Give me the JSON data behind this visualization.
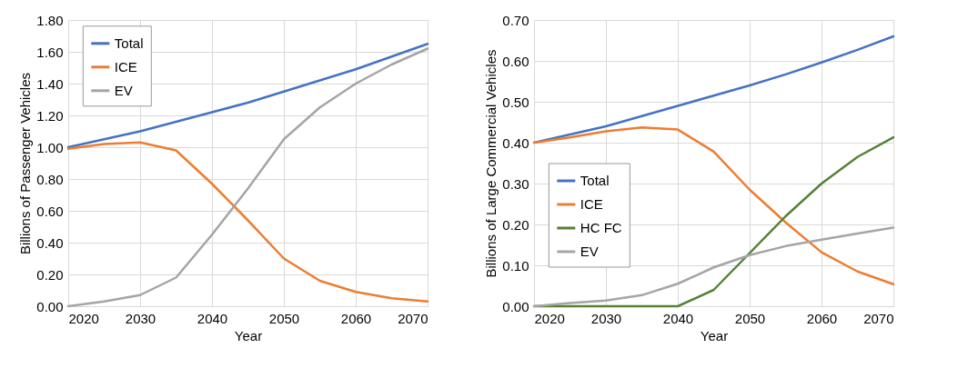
{
  "chart_data": [
    {
      "type": "line",
      "xlabel": "Year",
      "ylabel": "Billions of Passenger Vehicles",
      "x": [
        2020,
        2025,
        2030,
        2035,
        2040,
        2045,
        2050,
        2055,
        2060,
        2065,
        2070
      ],
      "series": [
        {
          "name": "Total",
          "color": "#4472c4",
          "values": [
            1.0,
            1.05,
            1.1,
            1.16,
            1.22,
            1.28,
            1.35,
            1.42,
            1.49,
            1.57,
            1.65
          ]
        },
        {
          "name": "ICE",
          "color": "#ed7d31",
          "values": [
            0.99,
            1.02,
            1.03,
            0.98,
            0.77,
            0.54,
            0.3,
            0.16,
            0.09,
            0.05,
            0.03
          ]
        },
        {
          "name": "EV",
          "color": "#a5a5a5",
          "values": [
            0.0,
            0.03,
            0.07,
            0.18,
            0.45,
            0.74,
            1.05,
            1.25,
            1.4,
            1.52,
            1.62
          ]
        }
      ],
      "xlim": [
        2020,
        2070
      ],
      "xticks": [
        2020,
        2030,
        2040,
        2050,
        2060,
        2070
      ],
      "ylim": [
        0,
        1.8
      ],
      "yticks": [
        {
          "value": 0,
          "label": "0.00"
        },
        {
          "value": 0.2,
          "label": "0.20"
        },
        {
          "value": 0.4,
          "label": "0.40"
        },
        {
          "value": 0.6,
          "label": "0.60"
        },
        {
          "value": 0.8,
          "label": "0.80"
        },
        {
          "value": 1.0,
          "label": "1.00"
        },
        {
          "value": 1.2,
          "label": "1.20"
        },
        {
          "value": 1.4,
          "label": "1.40"
        },
        {
          "value": 1.6,
          "label": "1.60"
        },
        {
          "value": 1.8,
          "label": "1.80"
        }
      ],
      "grid": true,
      "legend": "top left",
      "marker": "none",
      "line_style": "solid"
    },
    {
      "type": "line",
      "xlabel": "Year",
      "ylabel": "Billions of Large Commercial Vehicles",
      "x": [
        2020,
        2025,
        2030,
        2035,
        2040,
        2045,
        2050,
        2055,
        2060,
        2065,
        2070
      ],
      "series": [
        {
          "name": "Total",
          "color": "#4472c4",
          "values": [
            0.4,
            0.42,
            0.44,
            0.465,
            0.49,
            0.515,
            0.54,
            0.567,
            0.596,
            0.627,
            0.66
          ]
        },
        {
          "name": "ICE",
          "color": "#ed7d31",
          "values": [
            0.4,
            0.413,
            0.428,
            0.437,
            0.432,
            0.378,
            0.285,
            0.205,
            0.132,
            0.085,
            0.054
          ]
        },
        {
          "name": "HC FC",
          "color": "#548235",
          "values": [
            0,
            0,
            0,
            0,
            0,
            0.04,
            0.13,
            0.22,
            0.3,
            0.365,
            0.413
          ]
        },
        {
          "name": "EV",
          "color": "#a5a5a5",
          "values": [
            0,
            0.008,
            0.014,
            0.027,
            0.055,
            0.095,
            0.125,
            0.147,
            0.163,
            0.178,
            0.192
          ]
        }
      ],
      "xlim": [
        2020,
        2070
      ],
      "xticks": [
        2020,
        2030,
        2040,
        2050,
        2060,
        2070
      ],
      "ylim": [
        0,
        0.7
      ],
      "yticks": [
        {
          "value": 0,
          "label": "0.00"
        },
        {
          "value": 0.1,
          "label": "0.10"
        },
        {
          "value": 0.2,
          "label": "0.20"
        },
        {
          "value": 0.3,
          "label": "0.30"
        },
        {
          "value": 0.4,
          "label": "0.40"
        },
        {
          "value": 0.5,
          "label": "0.50"
        },
        {
          "value": 0.6,
          "label": "0.60"
        },
        {
          "value": 0.7,
          "label": "0.70"
        }
      ],
      "grid": true,
      "legend": "left",
      "marker": "none",
      "line_style": "solid"
    }
  ]
}
